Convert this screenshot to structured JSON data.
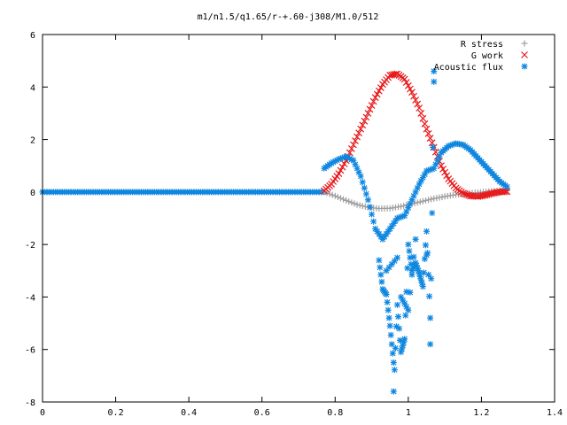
{
  "chart_data": {
    "type": "scatter",
    "title": "m1/n1.5/q1.65/r-+.60-j308/M1.0/512",
    "xlabel": "",
    "ylabel": "",
    "xlim": [
      0,
      1.4
    ],
    "ylim": [
      -8,
      6
    ],
    "x_ticks": [
      "0",
      "0.2",
      "0.4",
      "0.6",
      "0.8",
      "1",
      "1.2",
      "1.4"
    ],
    "y_ticks": [
      "-8",
      "-6",
      "-4",
      "-2",
      "0",
      "2",
      "4",
      "6"
    ],
    "grid": false,
    "legend_position": "top-right",
    "series": [
      {
        "name": "R stress",
        "marker": "plus",
        "color": "#a0a0a0",
        "points": [
          [
            0.77,
            0.0
          ],
          [
            0.8,
            -0.15
          ],
          [
            0.83,
            -0.32
          ],
          [
            0.86,
            -0.48
          ],
          [
            0.89,
            -0.58
          ],
          [
            0.92,
            -0.63
          ],
          [
            0.95,
            -0.62
          ],
          [
            0.98,
            -0.55
          ],
          [
            1.01,
            -0.45
          ],
          [
            1.04,
            -0.35
          ],
          [
            1.07,
            -0.25
          ],
          [
            1.1,
            -0.17
          ],
          [
            1.13,
            -0.1
          ],
          [
            1.16,
            -0.05
          ],
          [
            1.19,
            -0.02
          ],
          [
            1.22,
            0.02
          ],
          [
            1.25,
            0.05
          ],
          [
            1.27,
            0.05
          ]
        ]
      },
      {
        "name": "G work",
        "marker": "cross",
        "color": "#e8191b",
        "points": [
          [
            0.77,
            0.05
          ],
          [
            0.79,
            0.3
          ],
          [
            0.81,
            0.7
          ],
          [
            0.83,
            1.2
          ],
          [
            0.85,
            1.8
          ],
          [
            0.87,
            2.4
          ],
          [
            0.89,
            3.0
          ],
          [
            0.91,
            3.6
          ],
          [
            0.93,
            4.1
          ],
          [
            0.95,
            4.45
          ],
          [
            0.97,
            4.5
          ],
          [
            0.99,
            4.3
          ],
          [
            1.01,
            3.8
          ],
          [
            1.03,
            3.2
          ],
          [
            1.05,
            2.4
          ],
          [
            1.07,
            1.7
          ],
          [
            1.09,
            1.0
          ],
          [
            1.11,
            0.5
          ],
          [
            1.13,
            0.15
          ],
          [
            1.15,
            -0.05
          ],
          [
            1.17,
            -0.15
          ],
          [
            1.19,
            -0.17
          ],
          [
            1.21,
            -0.12
          ],
          [
            1.23,
            -0.05
          ],
          [
            1.25,
            0.0
          ],
          [
            1.27,
            0.02
          ]
        ]
      },
      {
        "name": "Acoustic flux",
        "marker": "star",
        "color": "#0f87e0",
        "points": [
          [
            0.77,
            0.9
          ],
          [
            0.79,
            1.1
          ],
          [
            0.81,
            1.25
          ],
          [
            0.83,
            1.35
          ],
          [
            0.85,
            1.2
          ],
          [
            0.87,
            0.6
          ],
          [
            0.89,
            -0.3
          ],
          [
            0.91,
            -1.4
          ],
          [
            0.93,
            -1.8
          ],
          [
            0.95,
            -1.4
          ],
          [
            0.97,
            -1.0
          ],
          [
            0.99,
            -0.9
          ],
          [
            1.01,
            -0.3
          ],
          [
            1.03,
            0.3
          ],
          [
            1.05,
            0.8
          ],
          [
            1.07,
            0.9
          ],
          [
            1.09,
            1.5
          ],
          [
            1.11,
            1.75
          ],
          [
            1.13,
            1.85
          ],
          [
            1.15,
            1.8
          ],
          [
            1.17,
            1.6
          ],
          [
            1.19,
            1.3
          ],
          [
            1.21,
            1.0
          ],
          [
            1.23,
            0.7
          ],
          [
            1.25,
            0.4
          ],
          [
            1.27,
            0.2
          ],
          [
            0.92,
            -2.6
          ],
          [
            0.93,
            -3.7
          ],
          [
            0.94,
            -3.9
          ],
          [
            0.95,
            -5.1
          ],
          [
            0.96,
            -6.5
          ],
          [
            0.96,
            -7.6
          ],
          [
            0.97,
            -4.3
          ],
          [
            0.98,
            -6.1
          ],
          [
            0.99,
            -5.6
          ],
          [
            1.0,
            -2.0
          ],
          [
            1.01,
            -3.0
          ],
          [
            1.02,
            -2.7
          ],
          [
            1.03,
            -3.1
          ],
          [
            1.04,
            -3.6
          ],
          [
            1.05,
            -1.5
          ],
          [
            1.06,
            -4.8
          ],
          [
            1.06,
            -5.8
          ],
          [
            1.07,
            4.2
          ],
          [
            1.07,
            4.6
          ],
          [
            0.98,
            -4.0
          ],
          [
            1.0,
            -4.5
          ],
          [
            1.02,
            -1.8
          ],
          [
            0.94,
            -3.0
          ],
          [
            0.97,
            -2.5
          ],
          [
            1.05,
            -2.4
          ]
        ]
      }
    ]
  }
}
